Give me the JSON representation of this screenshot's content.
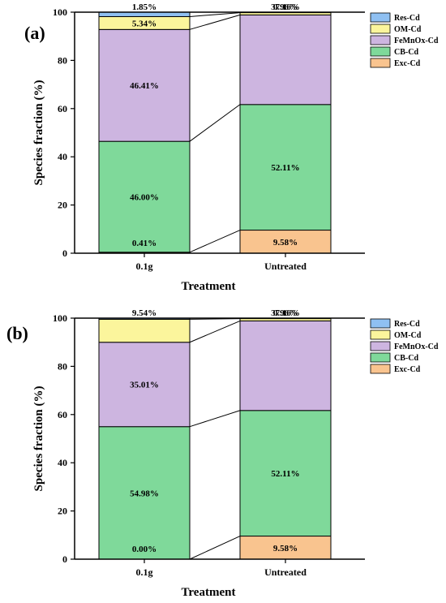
{
  "chart_data": [
    {
      "type": "bar",
      "stacked": true,
      "panel_label": "(a)",
      "categories": [
        "0.1g",
        "Untreated"
      ],
      "xlabel": "Treatment",
      "ylabel": "Species fraction (%)",
      "ylim": [
        0,
        100
      ],
      "yticks": [
        "0",
        "20",
        "40",
        "60",
        "80",
        "100"
      ],
      "grid": false,
      "legend_position": "top-right",
      "series": [
        {
          "name": "Exc-Cd",
          "color": "#f9c48f",
          "values": [
            0.41,
            9.58
          ],
          "labels": [
            "0.41%",
            "9.58%"
          ]
        },
        {
          "name": "CB-Cd",
          "color": "#7fd99a",
          "values": [
            46.0,
            52.11
          ],
          "labels": [
            "46.00%",
            "52.11%"
          ]
        },
        {
          "name": "FeMnOx-Cd",
          "color": "#cdb5e0",
          "values": [
            46.41,
            37.16
          ],
          "labels": [
            "46.41%",
            "37.16%"
          ]
        },
        {
          "name": "OM-Cd",
          "color": "#fbf59c",
          "values": [
            5.34,
            0.96
          ],
          "labels": [
            "5.34%",
            "0.96%"
          ]
        },
        {
          "name": "Res-Cd",
          "color": "#8fc0f2",
          "values": [
            1.85,
            0.19
          ],
          "labels": [
            "1.85%",
            ""
          ]
        }
      ],
      "legend": [
        "Res-Cd",
        "OM-Cd",
        "FeMnOx-Cd",
        "CB-Cd",
        "Exc-Cd"
      ]
    },
    {
      "type": "bar",
      "stacked": true,
      "panel_label": "(b)",
      "categories": [
        "0.1g",
        "Untreated"
      ],
      "xlabel": "Treatment",
      "ylabel": "Species fraction (%)",
      "ylim": [
        0,
        100
      ],
      "yticks": [
        "0",
        "20",
        "40",
        "60",
        "80",
        "100"
      ],
      "grid": false,
      "legend_position": "top-right",
      "series": [
        {
          "name": "Exc-Cd",
          "color": "#f9c48f",
          "values": [
            0.0,
            9.58
          ],
          "labels": [
            "0.00%",
            "9.58%"
          ]
        },
        {
          "name": "CB-Cd",
          "color": "#7fd99a",
          "values": [
            54.98,
            52.11
          ],
          "labels": [
            "54.98%",
            "52.11%"
          ]
        },
        {
          "name": "FeMnOx-Cd",
          "color": "#cdb5e0",
          "values": [
            35.01,
            37.16
          ],
          "labels": [
            "35.01%",
            "37.16%"
          ]
        },
        {
          "name": "OM-Cd",
          "color": "#fbf59c",
          "values": [
            9.54,
            0.96
          ],
          "labels": [
            "9.54%",
            "0.96%"
          ]
        },
        {
          "name": "Res-Cd",
          "color": "#8fc0f2",
          "values": [
            0.47,
            0.19
          ],
          "labels": [
            "",
            ""
          ]
        }
      ],
      "legend": [
        "Res-Cd",
        "OM-Cd",
        "FeMnOx-Cd",
        "CB-Cd",
        "Exc-Cd"
      ]
    }
  ]
}
